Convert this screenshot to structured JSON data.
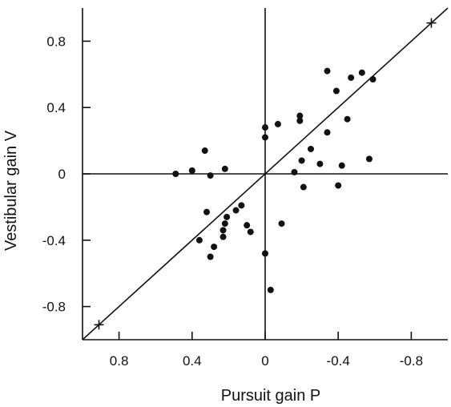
{
  "chart_data": {
    "type": "scatter",
    "xlabel": "Pursuit gain P",
    "ylabel": "Vestibular gain V",
    "xlim": [
      1.0,
      -1.0
    ],
    "ylim": [
      -1.0,
      1.0
    ],
    "x_ticks": [
      0.8,
      0.4,
      0,
      -0.4,
      -0.8
    ],
    "x_tick_labels": [
      "0.8",
      "0.4",
      "0",
      "-0.4",
      "-0.8"
    ],
    "y_ticks": [
      0.8,
      0.4,
      0,
      -0.4,
      -0.8
    ],
    "y_tick_labels": [
      "0.8",
      "0.4",
      "0",
      "-0.4",
      "-0.8"
    ],
    "reference_line": {
      "from": [
        1.0,
        -1.0
      ],
      "to": [
        -1.0,
        1.0
      ]
    },
    "cross_markers": [
      [
        0.91,
        -0.91
      ],
      [
        -0.91,
        0.91
      ]
    ],
    "grid": false,
    "points": [
      [
        0.49,
        0.0
      ],
      [
        0.4,
        0.02
      ],
      [
        0.33,
        0.14
      ],
      [
        0.3,
        -0.01
      ],
      [
        0.22,
        0.03
      ],
      [
        0.32,
        -0.23
      ],
      [
        0.36,
        -0.4
      ],
      [
        0.3,
        -0.5
      ],
      [
        0.28,
        -0.44
      ],
      [
        0.23,
        -0.38
      ],
      [
        0.23,
        -0.34
      ],
      [
        0.22,
        -0.3
      ],
      [
        0.21,
        -0.26
      ],
      [
        0.16,
        -0.22
      ],
      [
        0.13,
        -0.19
      ],
      [
        0.1,
        -0.31
      ],
      [
        0.08,
        -0.35
      ],
      [
        0.0,
        0.28
      ],
      [
        0.0,
        0.22
      ],
      [
        0.0,
        -0.48
      ],
      [
        -0.03,
        -0.7
      ],
      [
        -0.07,
        0.3
      ],
      [
        -0.09,
        -0.3
      ],
      [
        -0.16,
        0.01
      ],
      [
        -0.19,
        0.35
      ],
      [
        -0.19,
        0.32
      ],
      [
        -0.2,
        0.08
      ],
      [
        -0.21,
        -0.08
      ],
      [
        -0.25,
        0.15
      ],
      [
        -0.3,
        0.06
      ],
      [
        -0.34,
        0.62
      ],
      [
        -0.34,
        0.25
      ],
      [
        -0.39,
        0.5
      ],
      [
        -0.4,
        -0.07
      ],
      [
        -0.42,
        0.05
      ],
      [
        -0.45,
        0.33
      ],
      [
        -0.47,
        0.58
      ],
      [
        -0.53,
        0.61
      ],
      [
        -0.57,
        0.09
      ],
      [
        -0.59,
        0.57
      ]
    ]
  }
}
